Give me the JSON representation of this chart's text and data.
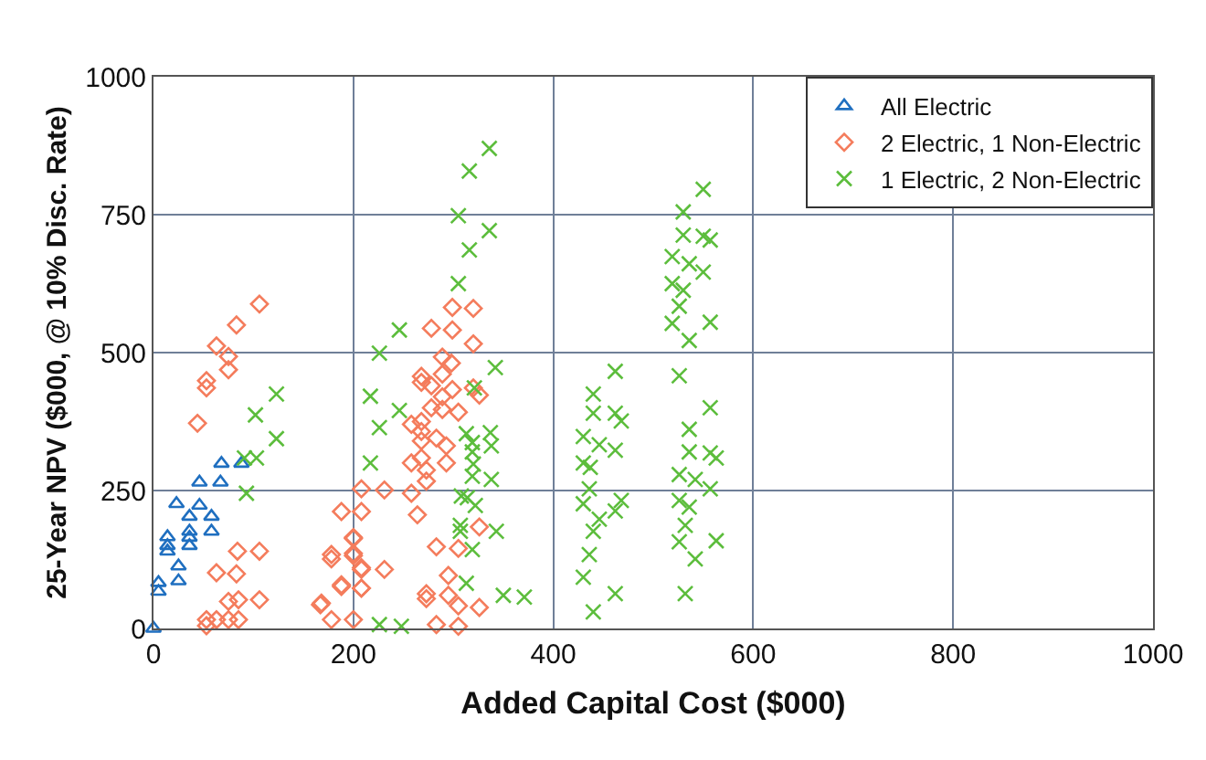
{
  "chart_data": {
    "type": "scatter",
    "xlabel": "Added Capital Cost ($000)",
    "ylabel": "25-Year NPV ($000, @ 10% Disc. Rate)",
    "xlim": [
      0,
      1000
    ],
    "xticks": [
      0,
      200,
      400,
      600,
      800,
      1000
    ],
    "ylim": [
      0,
      1000
    ],
    "yticks": [
      0,
      250,
      500,
      750,
      1000
    ],
    "grid": true,
    "legend": "top right",
    "series": [
      {
        "name": "All Electric",
        "color": "#1f6fc0",
        "marker": "triangle",
        "x": [
          0,
          5,
          5,
          14,
          14,
          14,
          25,
          25,
          23,
          36,
          36,
          36,
          36,
          46,
          46,
          58,
          58,
          67,
          68,
          88
        ],
        "values": [
          0,
          83,
          67,
          166,
          150,
          140,
          113,
          86,
          226,
          203,
          176,
          165,
          150,
          265,
          223,
          203,
          176,
          265,
          299,
          299
        ]
      },
      {
        "name": "2 Electric, 1 Non-Electric",
        "color": "#f47c5c",
        "marker": "diamond",
        "x": [
          106,
          83,
          63,
          75,
          75,
          53,
          53,
          44,
          84,
          106,
          63,
          83,
          75,
          85,
          106,
          53,
          63,
          75,
          85,
          53,
          208,
          188,
          208,
          200,
          178,
          200,
          208,
          188,
          208,
          167,
          178,
          200,
          299,
          320,
          278,
          299,
          320,
          289,
          298,
          268,
          268,
          289,
          278,
          299,
          320,
          326,
          289,
          278,
          289,
          305,
          258,
          268,
          268,
          283,
          268,
          293,
          293,
          268,
          258,
          273,
          273,
          231,
          258,
          264,
          326,
          305,
          283,
          200,
          178,
          200,
          208,
          231,
          295,
          188,
          208,
          273,
          273,
          295,
          168,
          305,
          326,
          283,
          305
        ],
        "values": [
          588,
          550,
          512,
          493,
          469,
          449,
          436,
          372,
          140,
          140,
          101,
          99,
          49,
          52,
          52,
          16,
          16,
          16,
          16,
          5,
          253,
          212,
          212,
          165,
          134,
          136,
          107,
          76,
          73,
          43,
          16,
          16,
          582,
          580,
          544,
          541,
          516,
          492,
          481,
          457,
          446,
          461,
          440,
          433,
          436,
          423,
          420,
          400,
          397,
          392,
          370,
          375,
          357,
          345,
          340,
          331,
          300,
          309,
          300,
          287,
          267,
          251,
          245,
          206,
          184,
          145,
          148,
          163,
          126,
          132,
          110,
          107,
          96,
          79,
          73,
          63,
          54,
          60,
          46,
          41,
          38,
          7,
          4
        ]
      },
      {
        "name": "1 Electric, 2 Non-Electric",
        "color": "#5cbd3c",
        "marker": "cross",
        "x": [
          123,
          102,
          123,
          91,
          103,
          93,
          336,
          316,
          305,
          336,
          316,
          305,
          246,
          226,
          342,
          321,
          217,
          246,
          226,
          313,
          337,
          319,
          319,
          338,
          217,
          320,
          319,
          338,
          308,
          314,
          322,
          307,
          307,
          343,
          319,
          313,
          350,
          371,
          226,
          248,
          550,
          530,
          530,
          550,
          557,
          519,
          536,
          550,
          519,
          530,
          526,
          519,
          536,
          557,
          462,
          526,
          440,
          440,
          462,
          468,
          557,
          430,
          446,
          462,
          536,
          536,
          557,
          563,
          430,
          437,
          526,
          542,
          557,
          436,
          430,
          468,
          462,
          446,
          526,
          536,
          440,
          532,
          526,
          563,
          436,
          542,
          430,
          462,
          532,
          440
        ],
        "values": [
          425,
          387,
          344,
          309,
          309,
          245,
          870,
          829,
          748,
          721,
          686,
          625,
          541,
          499,
          473,
          436,
          421,
          395,
          364,
          353,
          355,
          337,
          320,
          331,
          300,
          298,
          276,
          270,
          240,
          237,
          223,
          187,
          176,
          176,
          143,
          82,
          60,
          57,
          7,
          4,
          796,
          755,
          713,
          711,
          704,
          674,
          661,
          646,
          625,
          613,
          584,
          553,
          522,
          555,
          466,
          458,
          425,
          390,
          390,
          376,
          400,
          348,
          333,
          323,
          361,
          320,
          318,
          309,
          300,
          292,
          279,
          270,
          253,
          253,
          226,
          232,
          213,
          198,
          232,
          220,
          176,
          187,
          157,
          159,
          134,
          126,
          93,
          63,
          63,
          30
        ]
      }
    ]
  }
}
